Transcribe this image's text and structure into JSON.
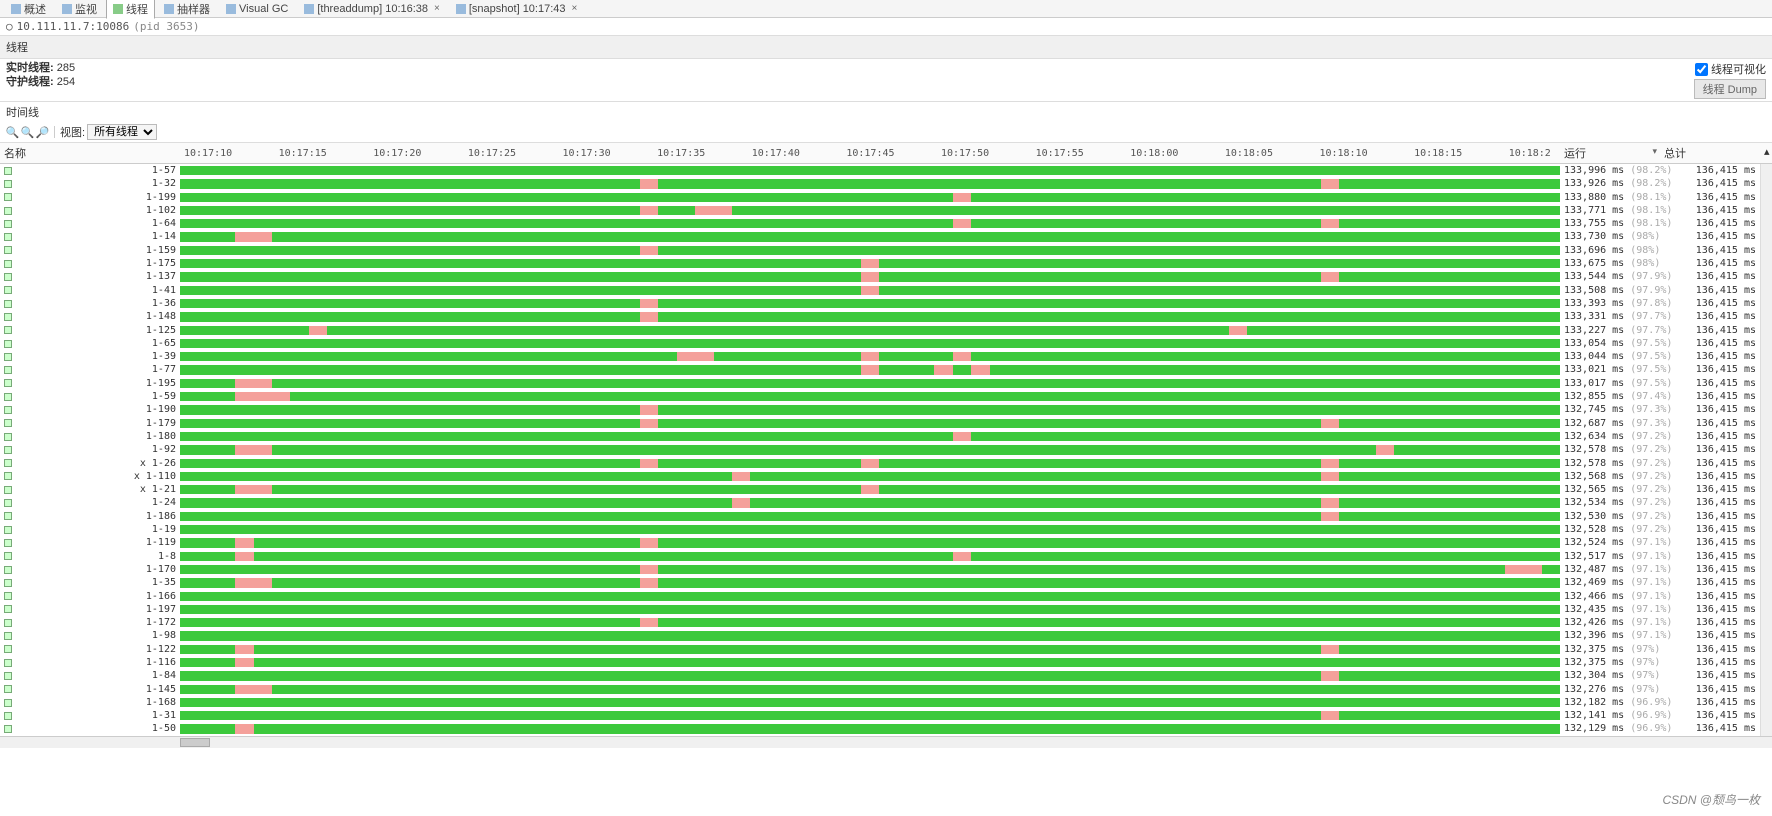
{
  "colors": {
    "running": "#3cc93c",
    "blocked": "#f4a09a",
    "axis_text": "#555555",
    "muted": "#aaaaaa"
  },
  "tabs": [
    {
      "icon": "overview",
      "label": "概述"
    },
    {
      "icon": "monitor",
      "label": "监视"
    },
    {
      "icon": "threads",
      "label": "线程",
      "active": true
    },
    {
      "icon": "sampler",
      "label": "抽样器"
    },
    {
      "icon": "gc",
      "label": "Visual GC"
    },
    {
      "icon": "dump",
      "label": "[threaddump] 10:16:38",
      "closable": true
    },
    {
      "icon": "snapshot",
      "label": "[snapshot] 10:17:43",
      "closable": true
    }
  ],
  "process": {
    "host": "10.111.11.7:10086",
    "pid": "(pid 3653)"
  },
  "section": "线程",
  "stats": {
    "live_label": "实时线程:",
    "live": "285",
    "daemon_label": "守护线程:",
    "daemon": "254"
  },
  "vis_checkbox": "线程可视化",
  "dump_button": "线程 Dump",
  "timeline_label": "时间线",
  "view_label": "视图:",
  "view_value": "所有线程",
  "columns": {
    "name": "名称",
    "running": "运行",
    "total": "总计"
  },
  "time_ticks": [
    "10:17:10",
    "10:17:15",
    "10:17:20",
    "10:17:25",
    "10:17:30",
    "10:17:35",
    "10:17:40",
    "10:17:45",
    "10:17:50",
    "10:17:55",
    "10:18:00",
    "10:18:05",
    "10:18:10",
    "10:18:15",
    "10:18:2"
  ],
  "time_start": 0,
  "time_span": 75,
  "total_ms": "136,415 ms",
  "threads": [
    {
      "name": "1-57",
      "run": "133,996 ms",
      "pct": "(98.2%)",
      "blips": []
    },
    {
      "name": "1-32",
      "run": "133,926 ms",
      "pct": "(98.2%)",
      "blips": [
        [
          25,
          1
        ],
        [
          62,
          1
        ]
      ]
    },
    {
      "name": "1-199",
      "run": "133,880 ms",
      "pct": "(98.1%)",
      "blips": [
        [
          42,
          1
        ]
      ]
    },
    {
      "name": "1-102",
      "run": "133,771 ms",
      "pct": "(98.1%)",
      "blips": [
        [
          25,
          1
        ],
        [
          28,
          2
        ]
      ]
    },
    {
      "name": "1-64",
      "run": "133,755 ms",
      "pct": "(98.1%)",
      "blips": [
        [
          42,
          1
        ],
        [
          62,
          1
        ]
      ]
    },
    {
      "name": "1-14",
      "run": "133,730 ms",
      "pct": "(98%)",
      "blips": [
        [
          3,
          2
        ]
      ]
    },
    {
      "name": "1-159",
      "run": "133,696 ms",
      "pct": "(98%)",
      "blips": [
        [
          25,
          1
        ]
      ]
    },
    {
      "name": "1-175",
      "run": "133,675 ms",
      "pct": "(98%)",
      "blips": [
        [
          37,
          1
        ]
      ]
    },
    {
      "name": "1-137",
      "run": "133,544 ms",
      "pct": "(97.9%)",
      "blips": [
        [
          37,
          1
        ],
        [
          62,
          1
        ]
      ]
    },
    {
      "name": "1-41",
      "run": "133,508 ms",
      "pct": "(97.9%)",
      "blips": [
        [
          37,
          1
        ]
      ]
    },
    {
      "name": "1-36",
      "run": "133,393 ms",
      "pct": "(97.8%)",
      "blips": [
        [
          25,
          1
        ]
      ]
    },
    {
      "name": "1-148",
      "run": "133,331 ms",
      "pct": "(97.7%)",
      "blips": [
        [
          25,
          1
        ]
      ]
    },
    {
      "name": "1-125",
      "run": "133,227 ms",
      "pct": "(97.7%)",
      "blips": [
        [
          7,
          1
        ],
        [
          57,
          1
        ]
      ]
    },
    {
      "name": "1-65",
      "run": "133,054 ms",
      "pct": "(97.5%)",
      "blips": []
    },
    {
      "name": "1-39",
      "run": "133,044 ms",
      "pct": "(97.5%)",
      "blips": [
        [
          27,
          2
        ],
        [
          37,
          1
        ],
        [
          42,
          1
        ]
      ]
    },
    {
      "name": "1-77",
      "run": "133,021 ms",
      "pct": "(97.5%)",
      "blips": [
        [
          37,
          1
        ],
        [
          41,
          1
        ],
        [
          43,
          1
        ]
      ]
    },
    {
      "name": "1-195",
      "run": "133,017 ms",
      "pct": "(97.5%)",
      "blips": [
        [
          3,
          2
        ]
      ]
    },
    {
      "name": "1-59",
      "run": "132,855 ms",
      "pct": "(97.4%)",
      "blips": [
        [
          3,
          2
        ],
        [
          5,
          1
        ]
      ]
    },
    {
      "name": "1-190",
      "run": "132,745 ms",
      "pct": "(97.3%)",
      "blips": [
        [
          25,
          1
        ]
      ]
    },
    {
      "name": "1-179",
      "run": "132,687 ms",
      "pct": "(97.3%)",
      "blips": [
        [
          25,
          1
        ],
        [
          62,
          1
        ]
      ]
    },
    {
      "name": "1-180",
      "run": "132,634 ms",
      "pct": "(97.2%)",
      "blips": [
        [
          42,
          1
        ]
      ]
    },
    {
      "name": "1-92",
      "run": "132,578 ms",
      "pct": "(97.2%)",
      "blips": [
        [
          3,
          2
        ],
        [
          65,
          1
        ]
      ]
    },
    {
      "name": "x 1-26",
      "run": "132,578 ms",
      "pct": "(97.2%)",
      "blips": [
        [
          25,
          1
        ],
        [
          37,
          1
        ],
        [
          62,
          1
        ]
      ]
    },
    {
      "name": "x 1-110",
      "run": "132,568 ms",
      "pct": "(97.2%)",
      "blips": [
        [
          30,
          1
        ],
        [
          62,
          1
        ]
      ]
    },
    {
      "name": "x 1-21",
      "run": "132,565 ms",
      "pct": "(97.2%)",
      "blips": [
        [
          3,
          2
        ],
        [
          37,
          1
        ]
      ]
    },
    {
      "name": "1-24",
      "run": "132,534 ms",
      "pct": "(97.2%)",
      "blips": [
        [
          30,
          1
        ],
        [
          62,
          1
        ]
      ]
    },
    {
      "name": "1-186",
      "run": "132,530 ms",
      "pct": "(97.2%)",
      "blips": [
        [
          62,
          1
        ]
      ]
    },
    {
      "name": "1-19",
      "run": "132,528 ms",
      "pct": "(97.2%)",
      "blips": []
    },
    {
      "name": "1-119",
      "run": "132,524 ms",
      "pct": "(97.1%)",
      "blips": [
        [
          3,
          1
        ],
        [
          25,
          1
        ]
      ]
    },
    {
      "name": "1-8",
      "run": "132,517 ms",
      "pct": "(97.1%)",
      "blips": [
        [
          3,
          1
        ],
        [
          42,
          1
        ]
      ]
    },
    {
      "name": "1-170",
      "run": "132,487 ms",
      "pct": "(97.1%)",
      "blips": [
        [
          25,
          1
        ],
        [
          72,
          2
        ]
      ]
    },
    {
      "name": "1-35",
      "run": "132,469 ms",
      "pct": "(97.1%)",
      "blips": [
        [
          3,
          2
        ],
        [
          25,
          1
        ]
      ]
    },
    {
      "name": "1-166",
      "run": "132,466 ms",
      "pct": "(97.1%)",
      "blips": []
    },
    {
      "name": "1-197",
      "run": "132,435 ms",
      "pct": "(97.1%)",
      "blips": []
    },
    {
      "name": "1-172",
      "run": "132,426 ms",
      "pct": "(97.1%)",
      "blips": [
        [
          25,
          1
        ]
      ]
    },
    {
      "name": "1-98",
      "run": "132,396 ms",
      "pct": "(97.1%)",
      "blips": []
    },
    {
      "name": "1-122",
      "run": "132,375 ms",
      "pct": "(97%)",
      "blips": [
        [
          3,
          1
        ],
        [
          62,
          1
        ]
      ]
    },
    {
      "name": "1-116",
      "run": "132,375 ms",
      "pct": "(97%)",
      "blips": [
        [
          3,
          1
        ]
      ]
    },
    {
      "name": "1-84",
      "run": "132,304 ms",
      "pct": "(97%)",
      "blips": [
        [
          62,
          1
        ]
      ]
    },
    {
      "name": "1-145",
      "run": "132,276 ms",
      "pct": "(97%)",
      "blips": [
        [
          3,
          2
        ]
      ]
    },
    {
      "name": "1-168",
      "run": "132,182 ms",
      "pct": "(96.9%)",
      "blips": []
    },
    {
      "name": "1-31",
      "run": "132,141 ms",
      "pct": "(96.9%)",
      "blips": [
        [
          62,
          1
        ]
      ]
    },
    {
      "name": "1-50",
      "run": "132,129 ms",
      "pct": "(96.9%)",
      "blips": [
        [
          3,
          1
        ]
      ]
    }
  ],
  "watermark": "CSDN @颓鸟一枚"
}
